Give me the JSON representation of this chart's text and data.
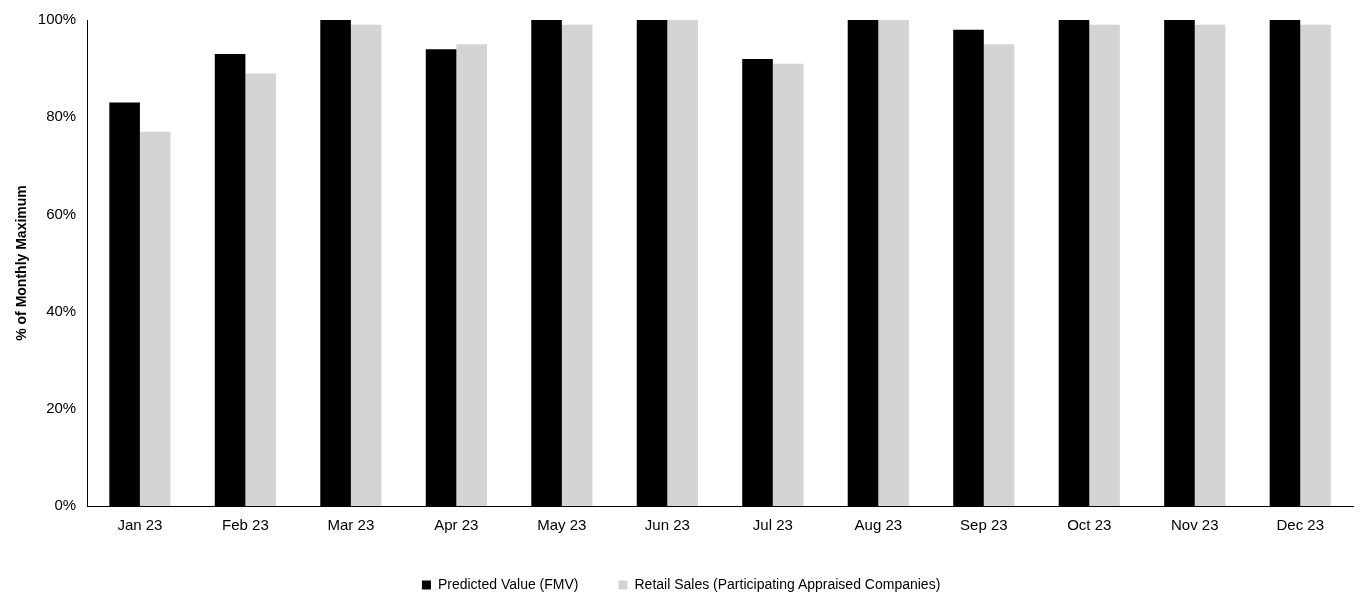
{
  "chart_data": {
    "type": "bar",
    "ylabel": "% of Monthly Maximum",
    "categories": [
      "Jan 23",
      "Feb 23",
      "Mar 23",
      "Apr 23",
      "May 23",
      "Jun 23",
      "Jul 23",
      "Aug 23",
      "Sep 23",
      "Oct 23",
      "Nov 23",
      "Dec 23"
    ],
    "series": [
      {
        "name": "Predicted Value (FMV)",
        "color": "#000000",
        "values": [
          83,
          93,
          100,
          94,
          100,
          100,
          92,
          100,
          98,
          100,
          100,
          100
        ]
      },
      {
        "name": "Retail Sales (Participating Appraised Companies)",
        "color": "#d4d4d4",
        "values": [
          77,
          89,
          99,
          95,
          99,
          100,
          91,
          100,
          95,
          99,
          99,
          99
        ]
      }
    ],
    "ylim": [
      0,
      100
    ],
    "yticks": [
      {
        "value": 0,
        "label": "0%"
      },
      {
        "value": 20,
        "label": "20%"
      },
      {
        "value": 40,
        "label": "40%"
      },
      {
        "value": 60,
        "label": "60%"
      },
      {
        "value": 80,
        "label": "80%"
      },
      {
        "value": 100,
        "label": "100%"
      }
    ],
    "grid": false,
    "legend": "bottom"
  }
}
